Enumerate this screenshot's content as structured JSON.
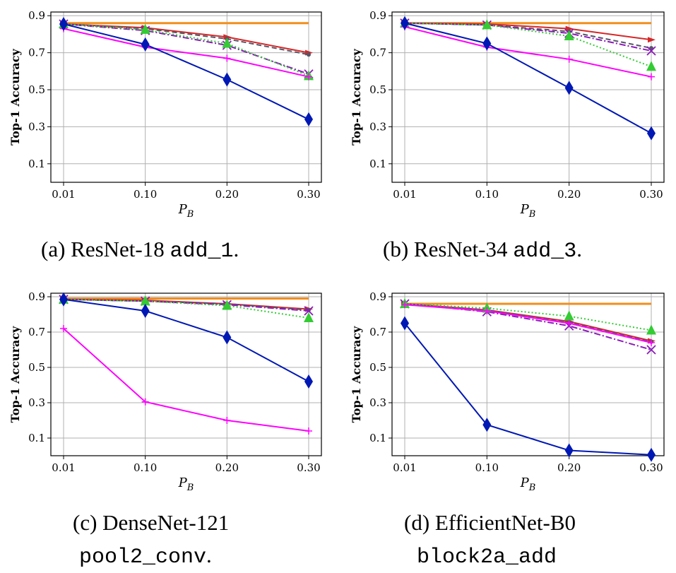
{
  "chart_data": [
    {
      "type": "line",
      "panel": "a",
      "caption": "(a) ResNet-18",
      "caption_code": "add_1",
      "caption_end": ".",
      "xlabel": "P",
      "xlabel_sub": "B",
      "ylabel": "Top-1 Accuracy",
      "x": [
        "0.01",
        "0.10",
        "0.20",
        "0.30"
      ],
      "yticks": [
        "0.1",
        "0.3",
        "0.5",
        "0.7",
        "0.9"
      ],
      "ylim": [
        0.0,
        0.92
      ],
      "grid": true,
      "series": [
        {
          "color": "#f28e1b",
          "style": "solid",
          "marker": "none",
          "values": [
            0.86,
            0.86,
            0.86,
            0.86
          ]
        },
        {
          "color": "#d62728",
          "style": "solid",
          "marker": "tri-right",
          "values": [
            0.855,
            0.835,
            0.785,
            0.7
          ]
        },
        {
          "color": "#555566",
          "style": "dashed",
          "marker": "circle",
          "values": [
            0.855,
            0.83,
            0.775,
            0.69
          ]
        },
        {
          "color": "#8b1ab8",
          "style": "dashdot",
          "marker": "x",
          "values": [
            0.855,
            0.82,
            0.74,
            0.585
          ]
        },
        {
          "color": "#33cc33",
          "style": "dotted",
          "marker": "triangle",
          "values": [
            0.855,
            0.825,
            0.75,
            0.575
          ]
        },
        {
          "color": "#ff00ff",
          "style": "solid",
          "marker": "plus",
          "values": [
            0.83,
            0.73,
            0.67,
            0.57
          ]
        },
        {
          "color": "#0018b4",
          "style": "solid",
          "marker": "diamond",
          "values": [
            0.855,
            0.745,
            0.555,
            0.34
          ]
        }
      ]
    },
    {
      "type": "line",
      "panel": "b",
      "caption": "(b) ResNet-34",
      "caption_code": "add_3",
      "caption_end": ".",
      "xlabel": "P",
      "xlabel_sub": "B",
      "ylabel": "Top-1 Accuracy",
      "x": [
        "0.01",
        "0.10",
        "0.20",
        "0.30"
      ],
      "yticks": [
        "0.1",
        "0.3",
        "0.5",
        "0.7",
        "0.9"
      ],
      "ylim": [
        0.0,
        0.92
      ],
      "grid": true,
      "series": [
        {
          "color": "#f28e1b",
          "style": "solid",
          "marker": "none",
          "values": [
            0.86,
            0.86,
            0.86,
            0.86
          ]
        },
        {
          "color": "#d62728",
          "style": "solid",
          "marker": "tri-right",
          "values": [
            0.86,
            0.855,
            0.83,
            0.77
          ]
        },
        {
          "color": "#555566",
          "style": "dashed",
          "marker": "circle",
          "values": [
            0.86,
            0.85,
            0.815,
            0.725
          ]
        },
        {
          "color": "#8b1ab8",
          "style": "dashdot",
          "marker": "x",
          "values": [
            0.86,
            0.85,
            0.805,
            0.71
          ]
        },
        {
          "color": "#33cc33",
          "style": "dotted",
          "marker": "triangle",
          "values": [
            0.86,
            0.85,
            0.79,
            0.625
          ]
        },
        {
          "color": "#ff00ff",
          "style": "solid",
          "marker": "plus",
          "values": [
            0.84,
            0.73,
            0.665,
            0.57
          ]
        },
        {
          "color": "#0018b4",
          "style": "solid",
          "marker": "diamond",
          "values": [
            0.86,
            0.75,
            0.51,
            0.265
          ]
        }
      ]
    },
    {
      "type": "line",
      "panel": "c",
      "caption": "(c) DenseNet-121",
      "caption_code": "pool2_conv",
      "caption_end": ".",
      "xlabel": "P",
      "xlabel_sub": "B",
      "ylabel": "Top-1 Accuracy",
      "x": [
        "0.01",
        "0.10",
        "0.20",
        "0.30"
      ],
      "yticks": [
        "0.1",
        "0.3",
        "0.5",
        "0.7",
        "0.9"
      ],
      "ylim": [
        0.0,
        0.92
      ],
      "grid": true,
      "series": [
        {
          "color": "#f28e1b",
          "style": "solid",
          "marker": "none",
          "values": [
            0.89,
            0.89,
            0.89,
            0.89
          ]
        },
        {
          "color": "#d62728",
          "style": "solid",
          "marker": "tri-right",
          "values": [
            0.885,
            0.88,
            0.86,
            0.83
          ]
        },
        {
          "color": "#555566",
          "style": "dashed",
          "marker": "circle",
          "values": [
            0.885,
            0.875,
            0.86,
            0.825
          ]
        },
        {
          "color": "#8b1ab8",
          "style": "dashdot",
          "marker": "x",
          "values": [
            0.885,
            0.875,
            0.855,
            0.82
          ]
        },
        {
          "color": "#33cc33",
          "style": "dotted",
          "marker": "triangle",
          "values": [
            0.885,
            0.875,
            0.85,
            0.78
          ]
        },
        {
          "color": "#ff00ff",
          "style": "solid",
          "marker": "plus",
          "values": [
            0.72,
            0.305,
            0.2,
            0.14
          ]
        },
        {
          "color": "#0018b4",
          "style": "solid",
          "marker": "diamond",
          "values": [
            0.885,
            0.82,
            0.67,
            0.42
          ]
        }
      ]
    },
    {
      "type": "line",
      "panel": "d",
      "caption": "(d) EfficientNet-B0",
      "caption_code": "block2a_add",
      "caption_end": "",
      "xlabel": "P",
      "xlabel_sub": "B",
      "ylabel": "Top-1 Accuracy",
      "x": [
        "0.01",
        "0.10",
        "0.20",
        "0.30"
      ],
      "yticks": [
        "0.1",
        "0.3",
        "0.5",
        "0.7",
        "0.9"
      ],
      "ylim": [
        0.0,
        0.92
      ],
      "grid": true,
      "series": [
        {
          "color": "#f28e1b",
          "style": "solid",
          "marker": "none",
          "values": [
            0.86,
            0.86,
            0.86,
            0.86
          ]
        },
        {
          "color": "#d62728",
          "style": "solid",
          "marker": "tri-right",
          "values": [
            0.86,
            0.825,
            0.76,
            0.65
          ]
        },
        {
          "color": "#555566",
          "style": "dashed",
          "marker": "circle",
          "values": [
            0.86,
            0.825,
            0.755,
            0.645
          ]
        },
        {
          "color": "#8b1ab8",
          "style": "dashdot",
          "marker": "x",
          "values": [
            0.86,
            0.815,
            0.735,
            0.6
          ]
        },
        {
          "color": "#33cc33",
          "style": "dotted",
          "marker": "triangle",
          "values": [
            0.86,
            0.835,
            0.79,
            0.71
          ]
        },
        {
          "color": "#ff00ff",
          "style": "solid",
          "marker": "plus",
          "values": [
            0.855,
            0.82,
            0.75,
            0.64
          ]
        },
        {
          "color": "#0018b4",
          "style": "solid",
          "marker": "diamond",
          "values": [
            0.75,
            0.175,
            0.03,
            0.005
          ]
        }
      ]
    }
  ]
}
